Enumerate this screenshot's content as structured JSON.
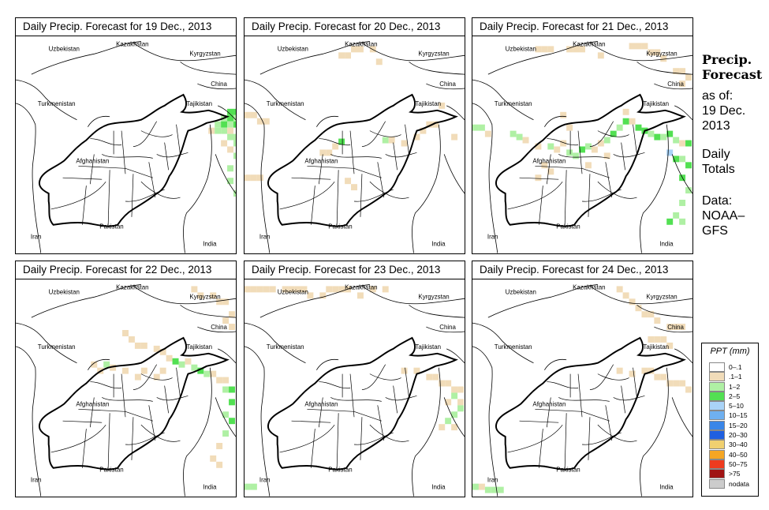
{
  "panels": [
    {
      "title": "Daily Precip. Forecast for  19 Dec., 2013"
    },
    {
      "title": "Daily Precip. Forecast for  20 Dec., 2013"
    },
    {
      "title": "Daily Precip. Forecast for  21 Dec., 2013"
    },
    {
      "title": "Daily Precip. Forecast for  22 Dec., 2013"
    },
    {
      "title": "Daily Precip. Forecast for  23 Dec., 2013"
    },
    {
      "title": "Daily Precip. Forecast for  24 Dec., 2013"
    }
  ],
  "map_labels": {
    "uzbekistan": "Uzbekistan",
    "kazakhstan": "Kazakhstan",
    "kyrgyzstan": "Kyrgyzstan",
    "china": "China",
    "turkmenistan": "Turkmenistan",
    "tajikistan": "Tajikistan",
    "afghanistan": "Afghanistan",
    "pakistan": "Pakistan",
    "iran": "Iran",
    "india": "India"
  },
  "side": {
    "title_line1": "Precip.",
    "title_line2": "Forecast",
    "asof": "as of:",
    "date_line1": "19 Dec.",
    "date_line2": "2013",
    "totals_line1": "Daily",
    "totals_line2": "Totals",
    "source_line1": "Data:",
    "source_line2": "NOAA–",
    "source_line3": "GFS"
  },
  "legend": {
    "title": "PPT (mm)",
    "items": [
      {
        "label": "0–.1",
        "color": "#ffffff"
      },
      {
        "label": ".1–1",
        "color": "#f1dcb9"
      },
      {
        "label": "1–2",
        "color": "#aff0a4"
      },
      {
        "label": "2–5",
        "color": "#52e052"
      },
      {
        "label": "5–10",
        "color": "#a9d3f7"
      },
      {
        "label": "10–15",
        "color": "#6fb0f0"
      },
      {
        "label": "15–20",
        "color": "#3a86e8"
      },
      {
        "label": "20–30",
        "color": "#1f5fe0"
      },
      {
        "label": "30–40",
        "color": "#f0d070"
      },
      {
        "label": "40–50",
        "color": "#f5a623"
      },
      {
        "label": "50–75",
        "color": "#ee3b1f"
      },
      {
        "label": ">75",
        "color": "#a01414"
      },
      {
        "label": "nodata",
        "color": "#cccccc"
      }
    ]
  }
}
